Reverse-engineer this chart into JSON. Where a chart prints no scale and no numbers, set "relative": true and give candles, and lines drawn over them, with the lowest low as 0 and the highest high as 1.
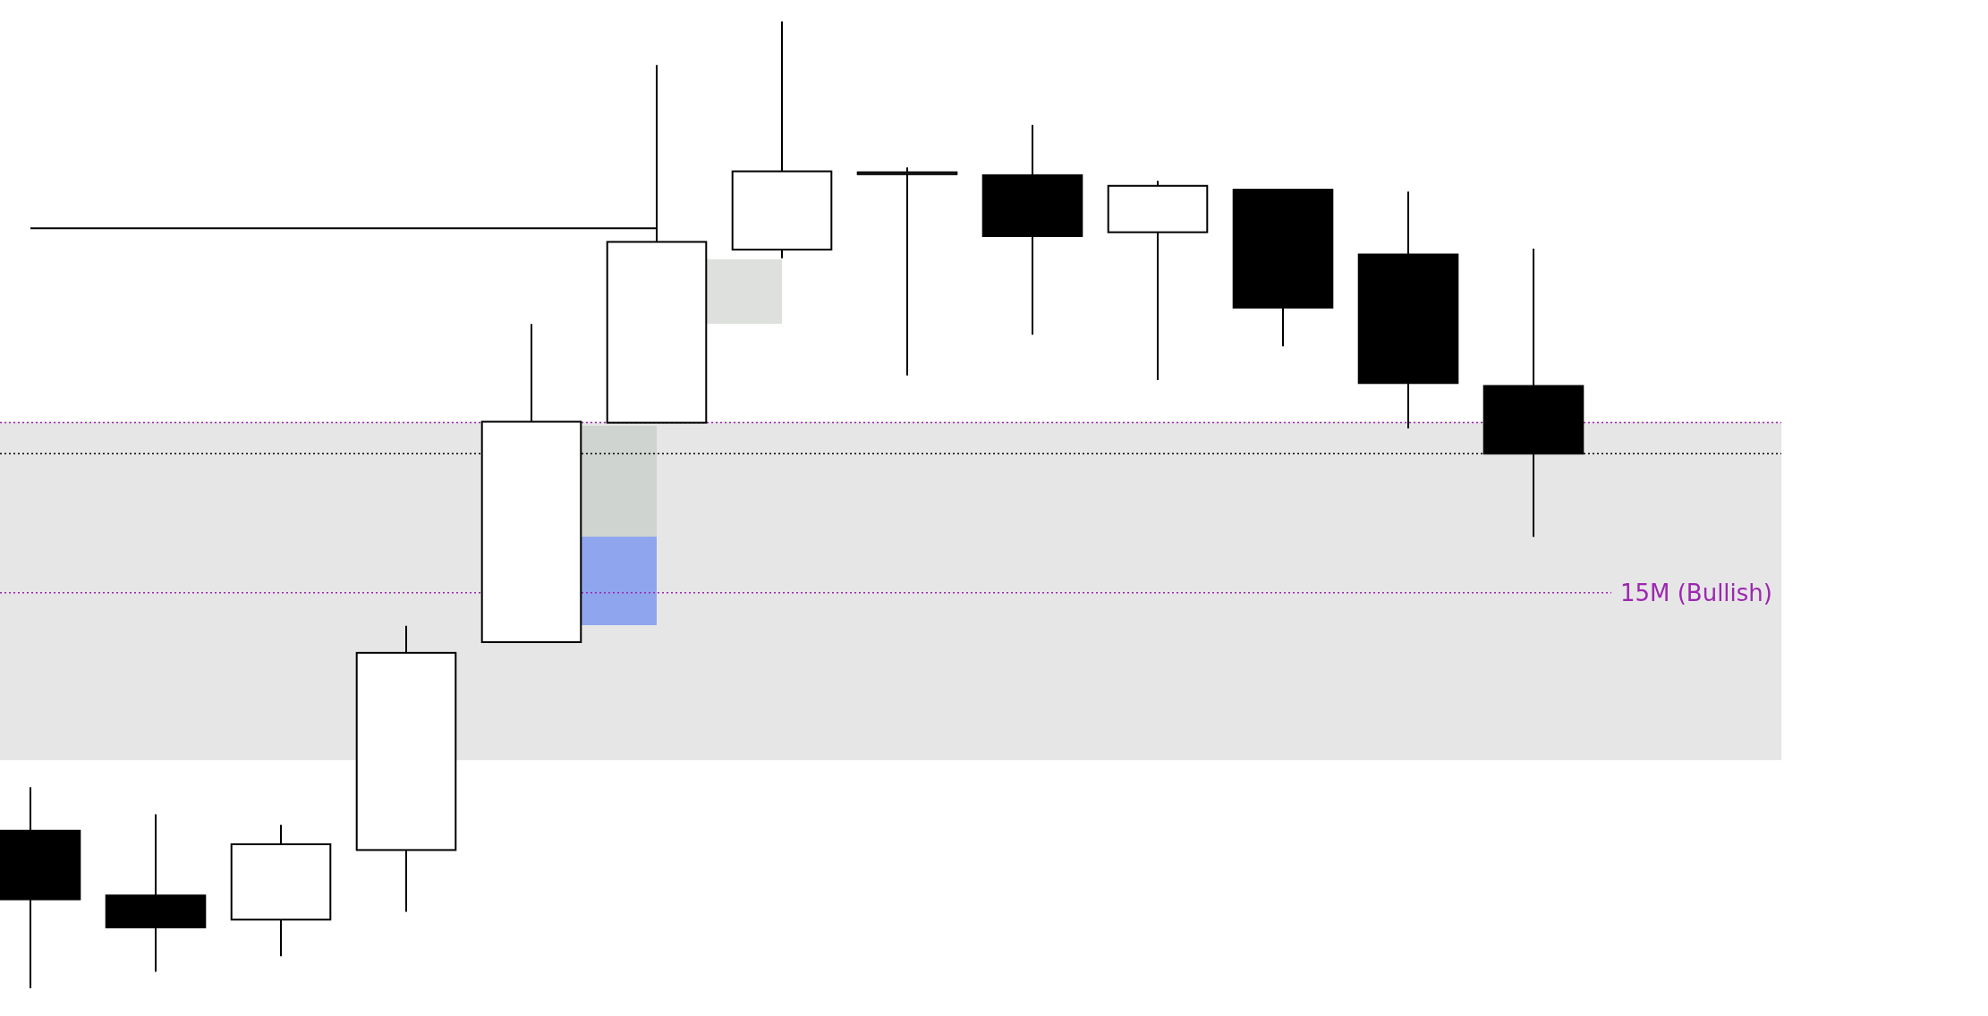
{
  "chart_data": {
    "type": "candlestick",
    "relative": true,
    "categories": [
      null,
      null,
      null,
      null,
      null,
      null,
      null,
      null,
      null,
      null,
      null,
      null,
      null
    ],
    "ohlc": [
      [
        0.163,
        0.208,
        0,
        0.092
      ],
      [
        0.096,
        0.18,
        0.017,
        0.063
      ],
      [
        0.071,
        0.169,
        0.033,
        0.149
      ],
      [
        0.143,
        0.375,
        0.079,
        0.347
      ],
      [
        0.358,
        0.687,
        0.358,
        0.586
      ],
      [
        0.585,
        0.955,
        0.585,
        0.772
      ],
      [
        0.764,
        1,
        0.755,
        0.845
      ],
      [
        0.842,
        0.849,
        0.634,
        0.844
      ],
      [
        0.841,
        0.893,
        0.676,
        0.778
      ],
      [
        0.782,
        0.835,
        0.629,
        0.83
      ],
      [
        0.826,
        0.826,
        0.664,
        0.704
      ],
      [
        0.759,
        0.824,
        0.579,
        0.626
      ],
      [
        0.623,
        0.765,
        0.467,
        0.553
      ]
    ],
    "series": [
      {
        "type": "line",
        "values": [
          0.786,
          0.786,
          0.786,
          0.786,
          0.786,
          0.786,
          null,
          null,
          null,
          null,
          null,
          null,
          null
        ],
        "color": "#000000",
        "line_style": "solid"
      }
    ],
    "bands": [
      {
        "axis": "y",
        "from": 0.236,
        "to": 0.586,
        "color": "#e6e6e6"
      }
    ],
    "ref_lines": [
      {
        "axis": "y",
        "value": 0.585,
        "color": "#9c27b0",
        "line_style": "dotted"
      },
      {
        "axis": "y",
        "value": 0.553,
        "color": "#000000",
        "line_style": "dotted"
      },
      {
        "axis": "y",
        "value": 0.409,
        "color": "#9c27b0",
        "line_style": "dotted",
        "label": "15M (Bullish)"
      }
    ]
  }
}
